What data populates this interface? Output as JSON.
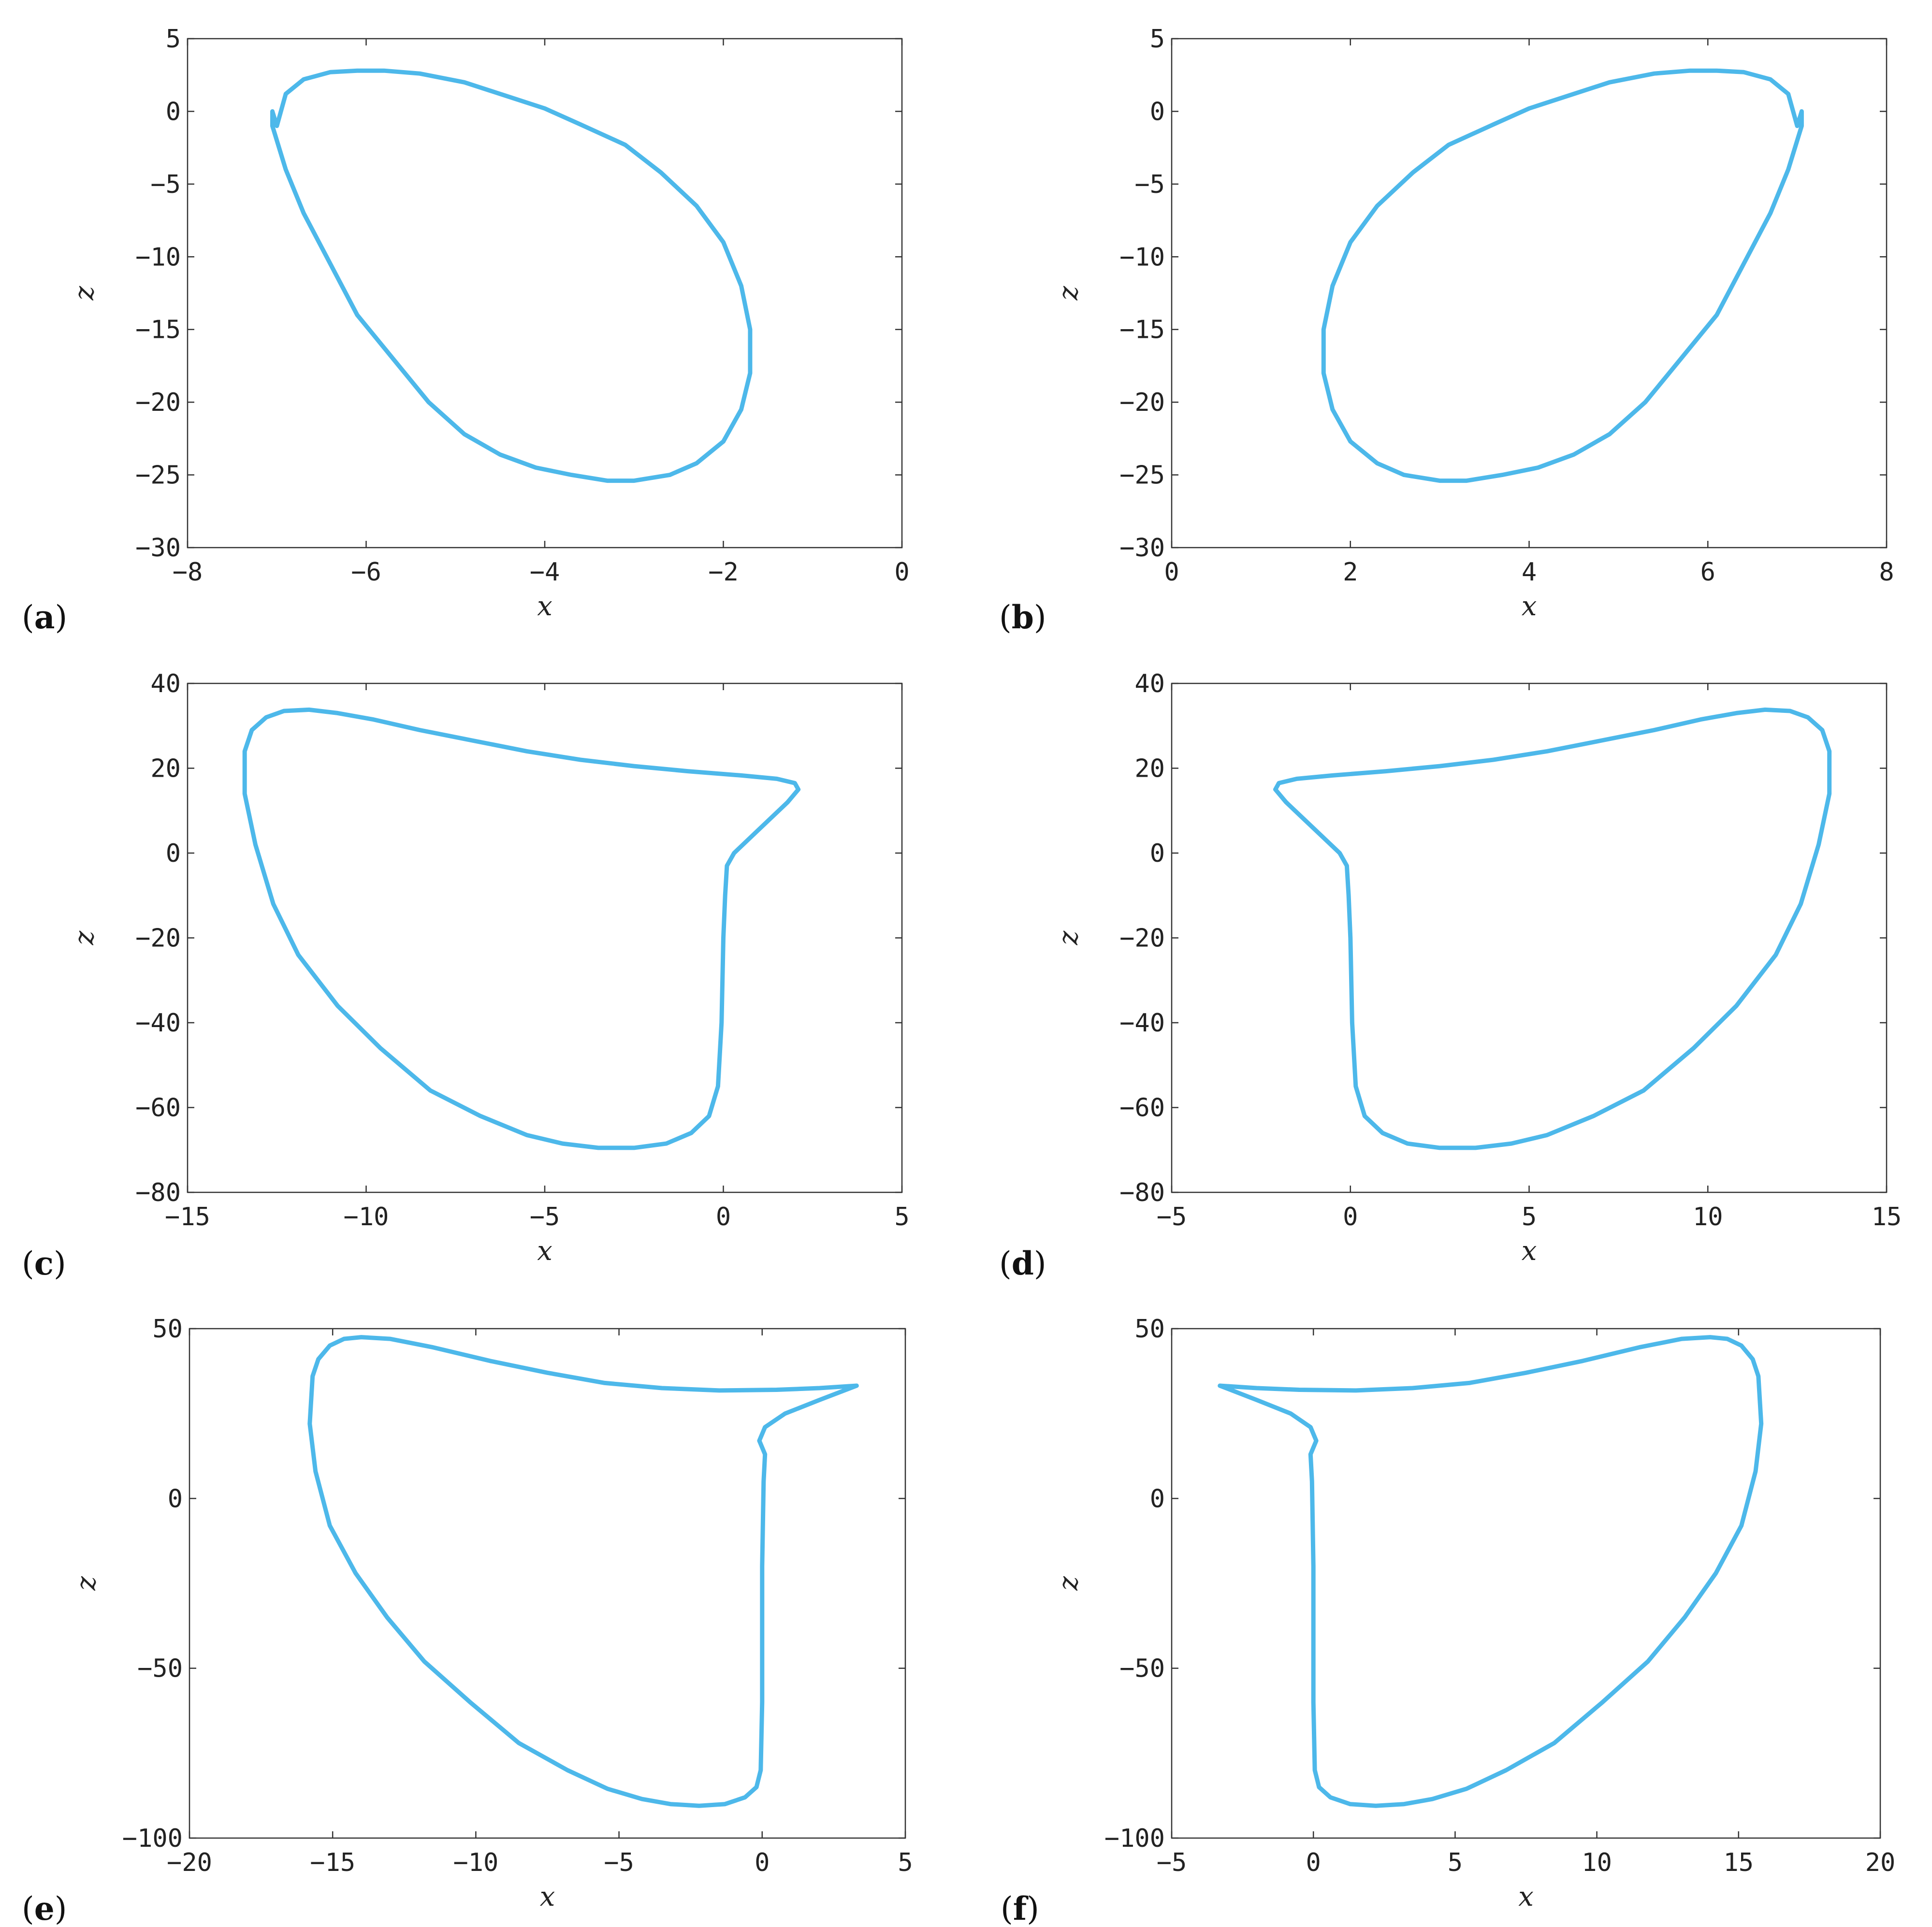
{
  "style": {
    "curve_color": "#4db8ea"
  },
  "chart_data": [
    {
      "id": "a",
      "panel_label": "a",
      "type": "line",
      "xlabel": "x",
      "ylabel": "z",
      "xlim": [
        -8,
        0
      ],
      "ylim": [
        -30,
        5
      ],
      "xticks": [
        -8,
        -6,
        -4,
        -2,
        0
      ],
      "xtick_labels": [
        "−8",
        "−6",
        "−4",
        "−2",
        "0"
      ],
      "yticks": [
        -30,
        -25,
        -20,
        -15,
        -10,
        -5,
        0,
        5
      ],
      "ytick_labels": [
        "−30",
        "−25",
        "−20",
        "−15",
        "−10",
        "−5",
        "0",
        "5"
      ],
      "series": [
        {
          "x": [
            -7.0,
            -6.9,
            -6.7,
            -6.4,
            -6.1,
            -5.8,
            -5.4,
            -4.9,
            -4.5,
            -4.0,
            -3.6,
            -3.1,
            -2.7,
            -2.3,
            -2.0,
            -1.8,
            -1.7,
            -1.7,
            -1.8,
            -2.0,
            -2.3,
            -2.6,
            -3.0,
            -3.3,
            -3.7,
            -4.1,
            -4.5,
            -4.9,
            -5.3,
            -5.7,
            -6.1,
            -6.4,
            -6.7,
            -6.9,
            -7.05,
            -7.05,
            -7.0
          ],
          "y": [
            -1.0,
            1.2,
            2.2,
            2.7,
            2.8,
            2.8,
            2.6,
            2.0,
            1.2,
            0.2,
            -0.9,
            -2.3,
            -4.2,
            -6.5,
            -9.0,
            -12.0,
            -15.0,
            -18.0,
            -20.5,
            -22.7,
            -24.2,
            -25.0,
            -25.4,
            -25.4,
            -25.0,
            -24.5,
            -23.6,
            -22.2,
            -20.0,
            -17.0,
            -14.0,
            -10.5,
            -7.0,
            -4.0,
            -1.0,
            0.0,
            -1.0
          ]
        }
      ]
    },
    {
      "id": "b",
      "panel_label": "b",
      "type": "line",
      "xlabel": "x",
      "ylabel": "z",
      "xlim": [
        0,
        8
      ],
      "ylim": [
        -30,
        5
      ],
      "xticks": [
        0,
        2,
        4,
        6,
        8
      ],
      "xtick_labels": [
        "0",
        "2",
        "4",
        "6",
        "8"
      ],
      "yticks": [
        -30,
        -25,
        -20,
        -15,
        -10,
        -5,
        0,
        5
      ],
      "ytick_labels": [
        "−30",
        "−25",
        "−20",
        "−15",
        "−10",
        "−5",
        "0",
        "5"
      ],
      "series": [
        {
          "x": [
            7.0,
            6.9,
            6.7,
            6.4,
            6.1,
            5.8,
            5.4,
            4.9,
            4.5,
            4.0,
            3.6,
            3.1,
            2.7,
            2.3,
            2.0,
            1.8,
            1.7,
            1.7,
            1.8,
            2.0,
            2.3,
            2.6,
            3.0,
            3.3,
            3.7,
            4.1,
            4.5,
            4.9,
            5.3,
            5.7,
            6.1,
            6.4,
            6.7,
            6.9,
            7.05,
            7.05,
            7.0
          ],
          "y": [
            -1.0,
            1.2,
            2.2,
            2.7,
            2.8,
            2.8,
            2.6,
            2.0,
            1.2,
            0.2,
            -0.9,
            -2.3,
            -4.2,
            -6.5,
            -9.0,
            -12.0,
            -15.0,
            -18.0,
            -20.5,
            -22.7,
            -24.2,
            -25.0,
            -25.4,
            -25.4,
            -25.0,
            -24.5,
            -23.6,
            -22.2,
            -20.0,
            -17.0,
            -14.0,
            -10.5,
            -7.0,
            -4.0,
            -1.0,
            0.0,
            -1.0
          ]
        }
      ]
    },
    {
      "id": "c",
      "panel_label": "c",
      "type": "line",
      "xlabel": "x",
      "ylabel": "z",
      "xlim": [
        -15,
        5
      ],
      "ylim": [
        -80,
        40
      ],
      "xticks": [
        -15,
        -10,
        -5,
        0,
        5
      ],
      "xtick_labels": [
        "−15",
        "−10",
        "−5",
        "0",
        "5"
      ],
      "yticks": [
        -80,
        -60,
        -40,
        -20,
        0,
        20,
        40
      ],
      "ytick_labels": [
        "−80",
        "−60",
        "−40",
        "−20",
        "0",
        "20",
        "40"
      ],
      "series": [
        {
          "x": [
            -13.4,
            -13.2,
            -12.8,
            -12.3,
            -11.6,
            -10.8,
            -9.8,
            -8.5,
            -7.0,
            -5.5,
            -4.0,
            -2.5,
            -1.0,
            0.5,
            1.5,
            2.0,
            2.1,
            1.8,
            1.3,
            0.8,
            0.3,
            0.1,
            0.05,
            0.0,
            -0.05,
            -0.15,
            -0.4,
            -0.9,
            -1.6,
            -2.5,
            -3.5,
            -4.5,
            -5.5,
            -6.8,
            -8.2,
            -9.6,
            -10.8,
            -11.9,
            -12.6,
            -13.1,
            -13.4,
            -13.4
          ],
          "y": [
            24,
            29,
            32,
            33.5,
            33.8,
            33,
            31.5,
            29,
            26.5,
            24,
            22,
            20.5,
            19.3,
            18.3,
            17.5,
            16.5,
            15,
            12,
            8,
            4,
            0,
            -3,
            -10,
            -20,
            -40,
            -55,
            -62,
            -66,
            -68.5,
            -69.5,
            -69.5,
            -68.5,
            -66.5,
            -62,
            -56,
            -46,
            -36,
            -24,
            -12,
            2,
            14,
            24
          ]
        }
      ]
    },
    {
      "id": "d",
      "panel_label": "d",
      "type": "line",
      "xlabel": "x",
      "ylabel": "z",
      "xlim": [
        -5,
        15
      ],
      "ylim": [
        -80,
        40
      ],
      "xticks": [
        -5,
        0,
        5,
        10,
        15
      ],
      "xtick_labels": [
        "−5",
        "0",
        "5",
        "10",
        "15"
      ],
      "yticks": [
        -80,
        -60,
        -40,
        -20,
        0,
        20,
        40
      ],
      "ytick_labels": [
        "−80",
        "−60",
        "−40",
        "−20",
        "0",
        "20",
        "40"
      ],
      "series": [
        {
          "x": [
            13.4,
            13.2,
            12.8,
            12.3,
            11.6,
            10.8,
            9.8,
            8.5,
            7.0,
            5.5,
            4.0,
            2.5,
            1.0,
            -0.5,
            -1.5,
            -2.0,
            -2.1,
            -1.8,
            -1.3,
            -0.8,
            -0.3,
            -0.1,
            -0.05,
            0.0,
            0.05,
            0.15,
            0.4,
            0.9,
            1.6,
            2.5,
            3.5,
            4.5,
            5.5,
            6.8,
            8.2,
            9.6,
            10.8,
            11.9,
            12.6,
            13.1,
            13.4,
            13.4
          ],
          "y": [
            24,
            29,
            32,
            33.5,
            33.8,
            33,
            31.5,
            29,
            26.5,
            24,
            22,
            20.5,
            19.3,
            18.3,
            17.5,
            16.5,
            15,
            12,
            8,
            4,
            0,
            -3,
            -10,
            -20,
            -40,
            -55,
            -62,
            -66,
            -68.5,
            -69.5,
            -69.5,
            -68.5,
            -66.5,
            -62,
            -56,
            -46,
            -36,
            -24,
            -12,
            2,
            14,
            24
          ]
        }
      ]
    },
    {
      "id": "e",
      "panel_label": "e",
      "type": "line",
      "xlabel": "x",
      "ylabel": "z",
      "xlim": [
        -20,
        5
      ],
      "ylim": [
        -100,
        50
      ],
      "xticks": [
        -20,
        -15,
        -10,
        -5,
        0,
        5
      ],
      "xtick_labels": [
        "−20",
        "−15",
        "−10",
        "−5",
        "0",
        "5"
      ],
      "yticks": [
        -100,
        -50,
        0,
        50
      ],
      "ytick_labels": [
        "−100",
        "−50",
        "0",
        "50"
      ],
      "series": [
        {
          "x": [
            -15.7,
            -15.5,
            -15.1,
            -14.6,
            -14.0,
            -13.0,
            -11.5,
            -9.5,
            -7.5,
            -5.5,
            -3.5,
            -1.5,
            0.5,
            2.0,
            3.3,
            2.0,
            0.8,
            0.1,
            -0.1,
            0.1,
            0.05,
            0.0,
            0.0,
            -0.05,
            -0.2,
            -0.6,
            -1.3,
            -2.2,
            -3.2,
            -4.2,
            -5.4,
            -6.8,
            -8.5,
            -10.2,
            -11.8,
            -13.1,
            -14.2,
            -15.1,
            -15.6,
            -15.8,
            -15.7
          ],
          "y": [
            36,
            41,
            45,
            47,
            47.5,
            47,
            44.5,
            40.5,
            37,
            34,
            32.5,
            31.8,
            32,
            32.5,
            33.2,
            29,
            25,
            21,
            17,
            13,
            5,
            -20,
            -60,
            -80,
            -85,
            -88,
            -90,
            -90.5,
            -90,
            -88.5,
            -85.5,
            -80,
            -72,
            -60,
            -48,
            -35,
            -22,
            -8,
            8,
            22,
            36
          ]
        }
      ]
    },
    {
      "id": "f",
      "panel_label": "f",
      "type": "line",
      "xlabel": "x",
      "ylabel": "z",
      "xlim": [
        -5,
        20
      ],
      "ylim": [
        -100,
        50
      ],
      "xticks": [
        -5,
        0,
        5,
        10,
        15,
        20
      ],
      "xtick_labels": [
        "−5",
        "0",
        "5",
        "10",
        "15",
        "20"
      ],
      "yticks": [
        -100,
        -50,
        0,
        50
      ],
      "ytick_labels": [
        "−100",
        "−50",
        "0",
        "50"
      ],
      "series": [
        {
          "x": [
            15.7,
            15.5,
            15.1,
            14.6,
            14.0,
            13.0,
            11.5,
            9.5,
            7.5,
            5.5,
            3.5,
            1.5,
            -0.5,
            -2.0,
            -3.3,
            -2.0,
            -0.8,
            -0.1,
            0.1,
            -0.1,
            -0.05,
            0.0,
            0.0,
            0.05,
            0.2,
            0.6,
            1.3,
            2.2,
            3.2,
            4.2,
            5.4,
            6.8,
            8.5,
            10.2,
            11.8,
            13.1,
            14.2,
            15.1,
            15.6,
            15.8,
            15.7
          ],
          "y": [
            36,
            41,
            45,
            47,
            47.5,
            47,
            44.5,
            40.5,
            37,
            34,
            32.5,
            31.8,
            32,
            32.5,
            33.2,
            29,
            25,
            21,
            17,
            13,
            5,
            -20,
            -60,
            -80,
            -85,
            -88,
            -90,
            -90.5,
            -90,
            -88.5,
            -85.5,
            -80,
            -72,
            -60,
            -48,
            -35,
            -22,
            -8,
            8,
            22,
            36
          ]
        }
      ]
    }
  ]
}
